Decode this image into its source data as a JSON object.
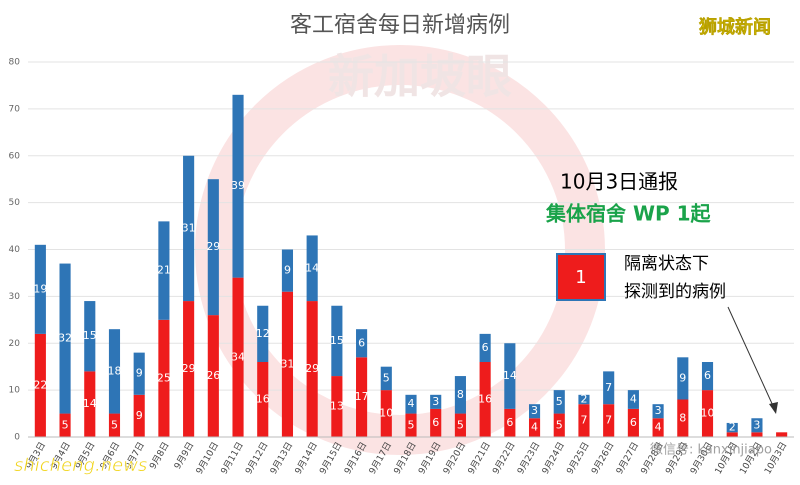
{
  "chart_data": {
    "type": "stacked_bar",
    "title": "客工宿舍每日新增病例",
    "categories": [
      "9月3日",
      "9月4日",
      "9月5日",
      "9月6日",
      "9月7日",
      "9月8日",
      "9月9日",
      "9月10日",
      "9月11日",
      "9月12日",
      "9月13日",
      "9月14日",
      "9月15日",
      "9月16日",
      "9月17日",
      "9月18日",
      "9月19日",
      "9月20日",
      "9月21日",
      "9月22日",
      "9月23日",
      "9月24日",
      "9月25日",
      "9月26日",
      "9月27日",
      "9月28日",
      "9月29日",
      "9月30日",
      "10月1日",
      "10月2日",
      "10月3日"
    ],
    "series": [
      {
        "color": "#ee1c1c",
        "values": [
          22,
          5,
          14,
          5,
          9,
          25,
          29,
          26,
          34,
          16,
          31,
          29,
          13,
          17,
          10,
          5,
          6,
          5,
          16,
          6,
          4,
          5,
          7,
          7,
          6,
          4,
          8,
          10,
          1,
          1,
          1
        ]
      },
      {
        "color": "#2e75b6",
        "values": [
          19,
          32,
          15,
          18,
          9,
          21,
          31,
          29,
          39,
          12,
          9,
          14,
          15,
          6,
          5,
          4,
          3,
          8,
          6,
          14,
          3,
          5,
          2,
          7,
          4,
          3,
          9,
          6,
          2,
          3,
          0
        ]
      }
    ],
    "ylim": [
      0,
      80
    ],
    "yticks": [
      0,
      10,
      20,
      30,
      40,
      50,
      60,
      70,
      80
    ],
    "grid": true,
    "annotations": {
      "report": "10月3日通报",
      "dorm": "集体宿舍 WP 1起",
      "box_value": "1",
      "box_line1": "隔离状态下",
      "box_line2": "探测到的病例"
    },
    "brand": "狮城新闻",
    "watermark": "新加坡眼",
    "site": "shicheng.news",
    "wechat": "微信号: kanxinjiapo"
  }
}
